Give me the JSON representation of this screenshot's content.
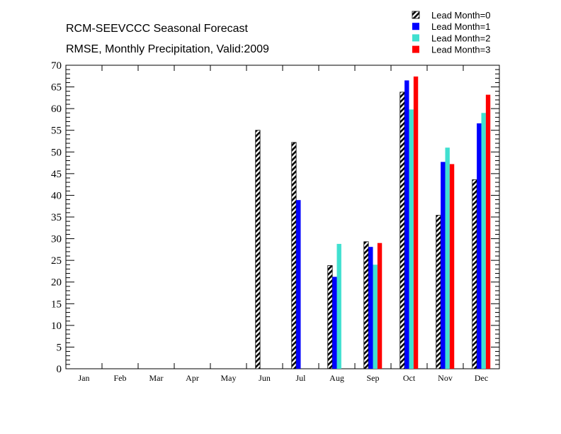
{
  "chart_data": {
    "type": "bar",
    "title": "RCM-SEEVCCC Seasonal Forecast",
    "subtitle": "RMSE, Monthly Precipitation, Valid:2009",
    "categories": [
      "Jan",
      "Feb",
      "Mar",
      "Apr",
      "May",
      "Jun",
      "Jul",
      "Aug",
      "Sep",
      "Oct",
      "Nov",
      "Dec"
    ],
    "ylim": [
      0,
      70
    ],
    "yticks": [
      "0",
      "5",
      "10",
      "15",
      "20",
      "25",
      "30",
      "35",
      "40",
      "45",
      "50",
      "55",
      "60",
      "65",
      "70"
    ],
    "legend_position": "top-right",
    "series": [
      {
        "name": "Lead Month=0",
        "color": "#000000",
        "pattern": "hatched",
        "values": [
          null,
          null,
          null,
          null,
          null,
          55.0,
          52.2,
          23.8,
          29.3,
          63.8,
          35.4,
          43.6
        ]
      },
      {
        "name": "Lead Month=1",
        "color": "#0000ff",
        "pattern": "solid",
        "values": [
          null,
          null,
          null,
          null,
          null,
          null,
          38.9,
          21.2,
          28.1,
          66.5,
          47.7,
          56.6
        ]
      },
      {
        "name": "Lead Month=2",
        "color": "#40e0d0",
        "pattern": "solid",
        "values": [
          null,
          null,
          null,
          null,
          null,
          null,
          null,
          28.8,
          24.0,
          59.8,
          51.0,
          59.0
        ]
      },
      {
        "name": "Lead Month=3",
        "color": "#ff0000",
        "pattern": "solid",
        "values": [
          null,
          null,
          null,
          null,
          null,
          null,
          null,
          null,
          29.0,
          67.4,
          47.2,
          63.2
        ]
      }
    ]
  }
}
